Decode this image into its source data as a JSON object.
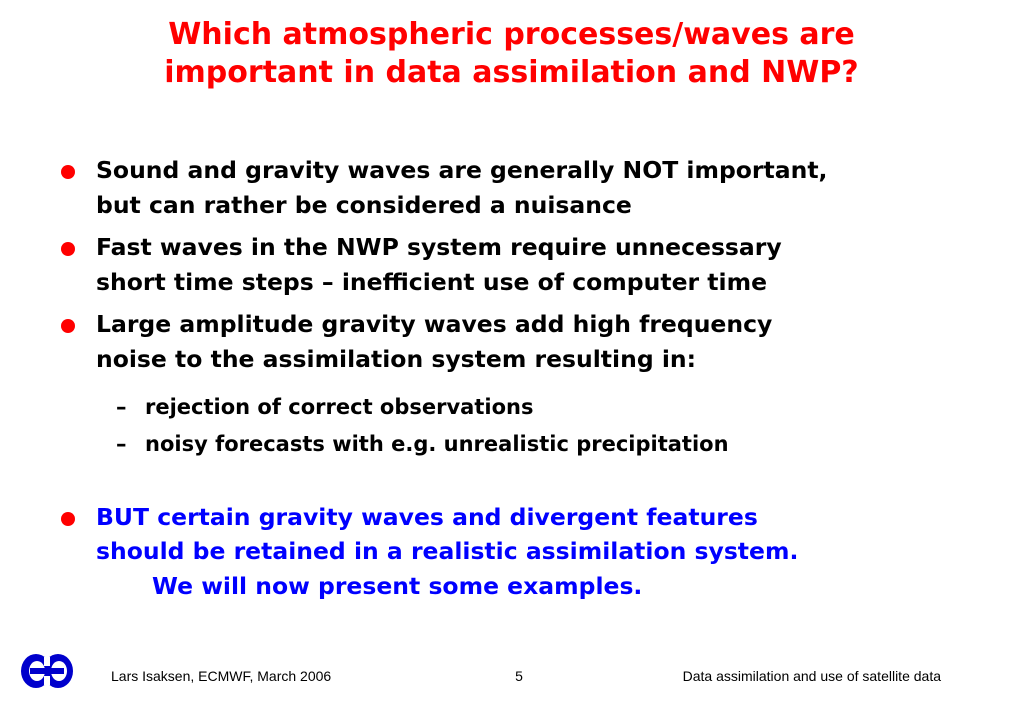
{
  "title": [
    "Which atmospheric processes/waves are",
    "important in data assimilation and NWP?"
  ],
  "bullets": [
    [
      "Sound and gravity waves are generally NOT important,",
      "but can rather be considered a nuisance"
    ],
    [
      "Fast waves in the NWP system require unnecessary",
      "short time steps – inefficient use of computer time"
    ],
    [
      "Large amplitude gravity waves add high frequency",
      "noise to the assimilation system resulting in:"
    ]
  ],
  "sub_bullets": [
    {
      "marker": "–",
      "text": "rejection of correct observations"
    },
    {
      "marker": "–",
      "text": "noisy forecasts with e.g. unrealistic precipitation"
    }
  ],
  "final_bullet": [
    "BUT certain gravity waves and divergent features",
    "should be retained in a realistic assimilation system.",
    "We will now present some examples."
  ],
  "footer": {
    "author": "Lars Isaksen, ECMWF, March 2006",
    "page": "5",
    "topic": "Data assimilation and use of satellite data"
  }
}
